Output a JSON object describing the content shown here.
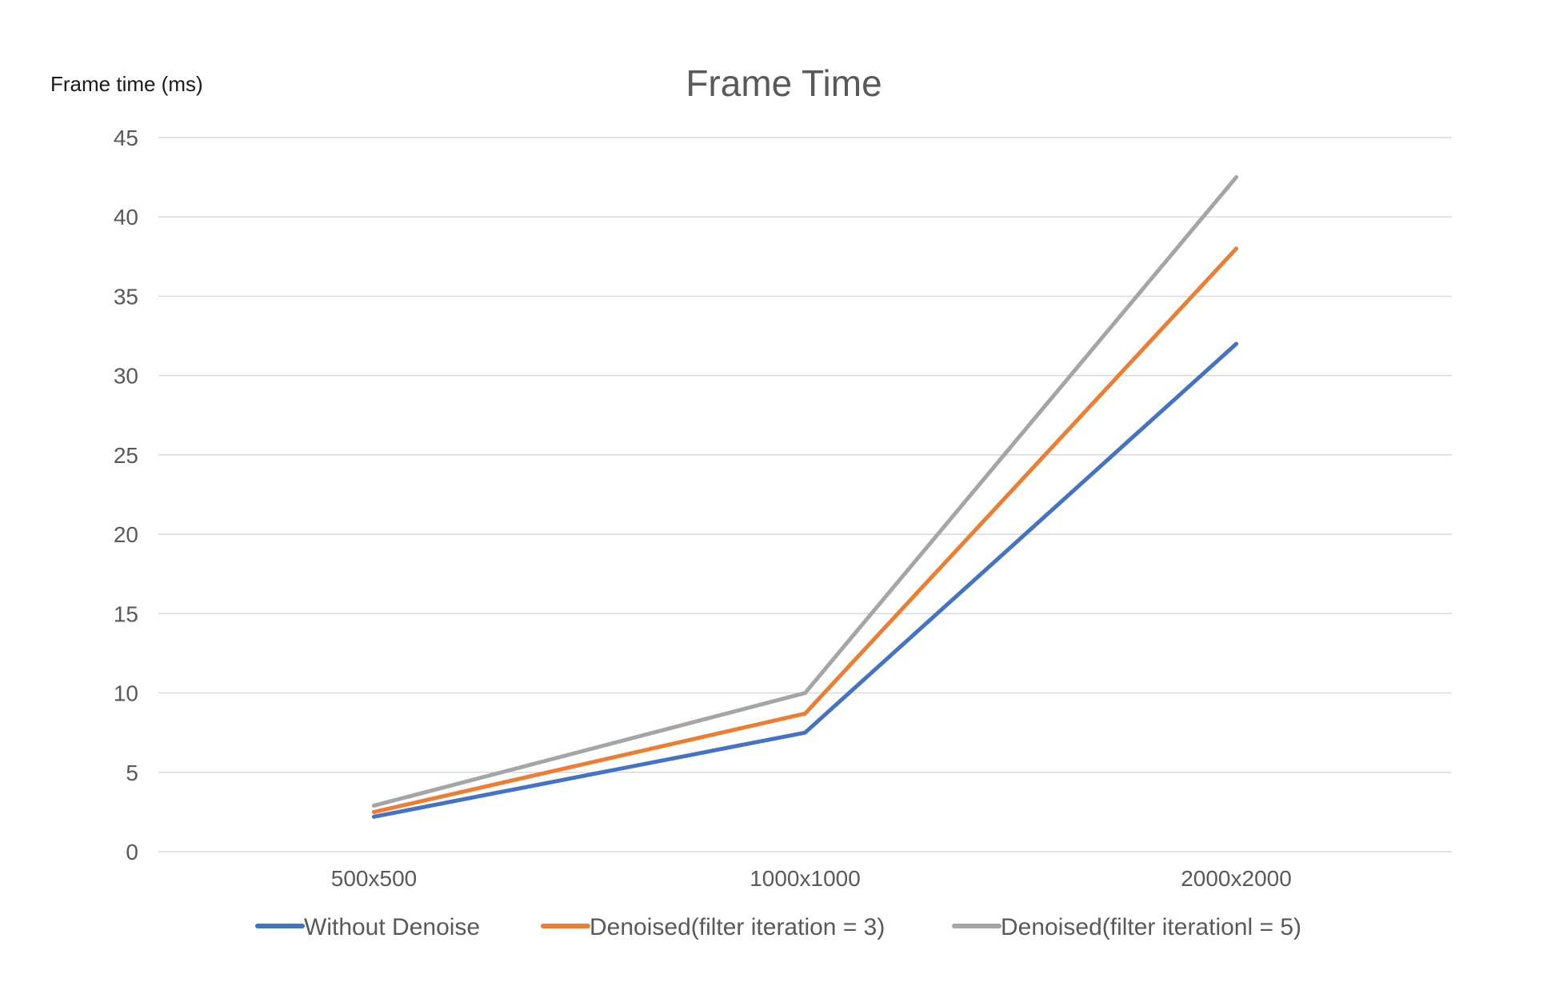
{
  "chart_data": {
    "type": "line",
    "title": "Frame Time",
    "ylabel": "Frame time (ms)",
    "xlabel": "",
    "categories": [
      "500x500",
      "1000x1000",
      "2000x2000"
    ],
    "ylim": [
      0,
      45
    ],
    "yticks": [
      0,
      5,
      10,
      15,
      20,
      25,
      30,
      35,
      40,
      45
    ],
    "grid": true,
    "legend_position": "bottom",
    "series": [
      {
        "name": "Without Denoise",
        "color": "#4472C4",
        "values": [
          2.2,
          7.5,
          32
        ]
      },
      {
        "name": "Denoised(filter iteration = 3)",
        "color": "#ED7D31",
        "values": [
          2.5,
          8.7,
          38
        ]
      },
      {
        "name": "Denoised(filter iterationl = 5)",
        "color": "#A5A5A5",
        "values": [
          2.9,
          10,
          42.5
        ]
      }
    ]
  }
}
